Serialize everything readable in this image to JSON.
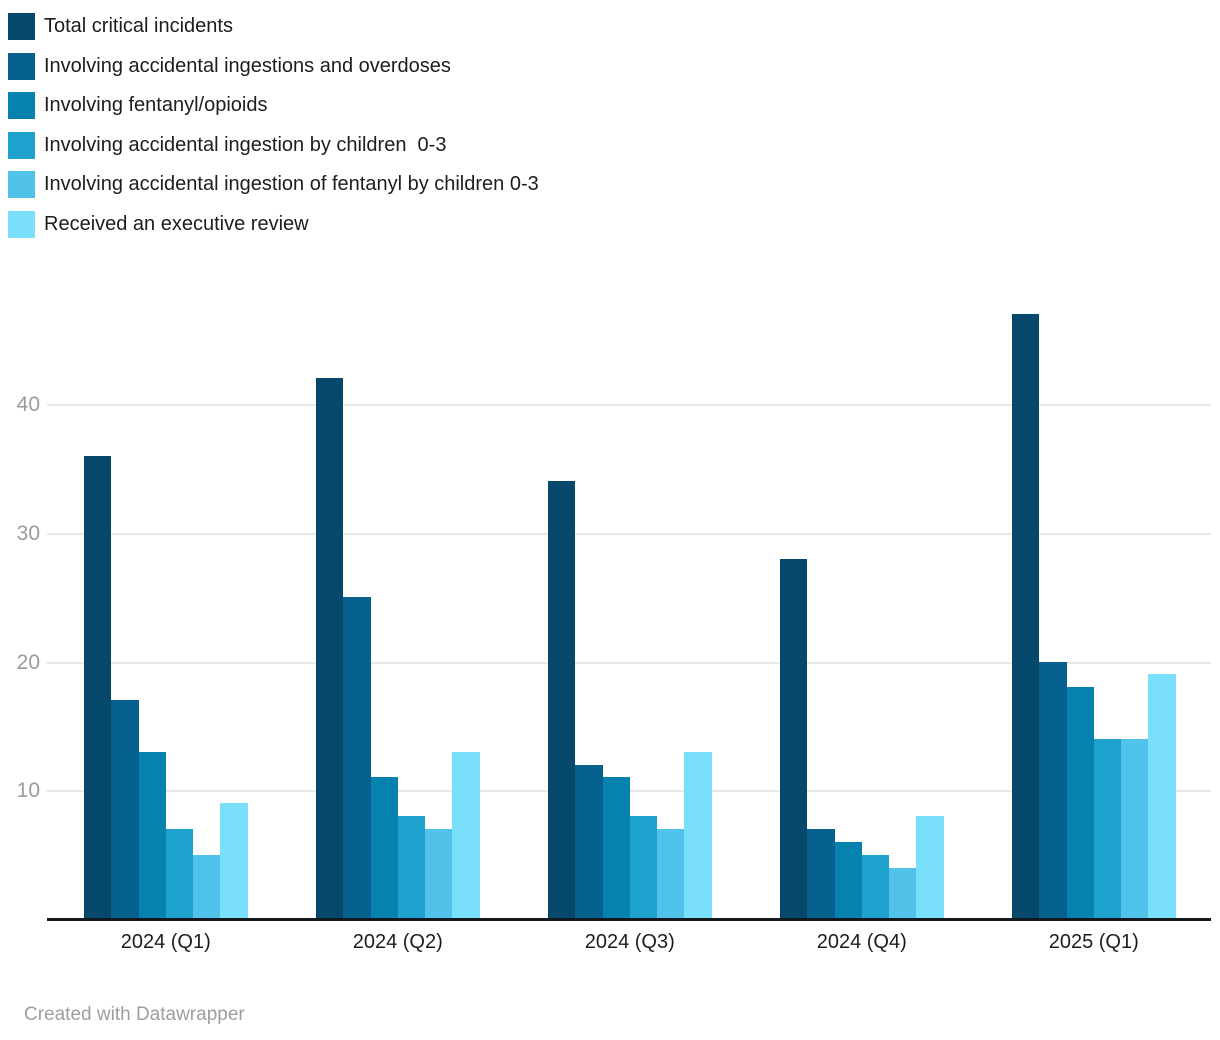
{
  "chart_data": {
    "type": "bar",
    "title": "",
    "xlabel": "",
    "ylabel": "",
    "categories": [
      "2024 (Q1)",
      "2024 (Q2)",
      "2024 (Q3)",
      "2024 (Q4)",
      "2025 (Q1)"
    ],
    "series": [
      {
        "name": "Total critical incidents",
        "color": "#07496d",
        "values": [
          36,
          42,
          34,
          28,
          47
        ]
      },
      {
        "name": "Involving accidental ingestions and overdoses",
        "color": "#07618e",
        "values": [
          17,
          25,
          12,
          7,
          20
        ]
      },
      {
        "name": "Involving fentanyl/opioids",
        "color": "#0583ae",
        "values": [
          13,
          11,
          11,
          6,
          18
        ]
      },
      {
        "name": "Involving accidental ingestion by children  0-3",
        "color": "#1fa1ce",
        "values": [
          7,
          8,
          8,
          5,
          14
        ]
      },
      {
        "name": "Involving accidental ingestion of fentanyl by children 0-3",
        "color": "#51c2ea",
        "values": [
          5,
          7,
          7,
          4,
          14
        ]
      },
      {
        "name": "Received an executive review",
        "color": "#7adffa",
        "values": [
          9,
          13,
          13,
          8,
          19
        ]
      }
    ],
    "yticks": [
      10,
      20,
      30,
      40
    ],
    "ylim": [
      0,
      47
    ],
    "grid": true,
    "legend_position": "top-left"
  },
  "footer": {
    "attribution": "Created with Datawrapper"
  },
  "colors": {
    "background": "#ffffff",
    "gridline": "#e7e7e7",
    "baseline": "#14181c",
    "axis_tick_text": "#9b9b9b",
    "category_text": "#1d1d1d",
    "legend_text": "#1d1d1d",
    "footer_text": "#9e9e9e"
  }
}
